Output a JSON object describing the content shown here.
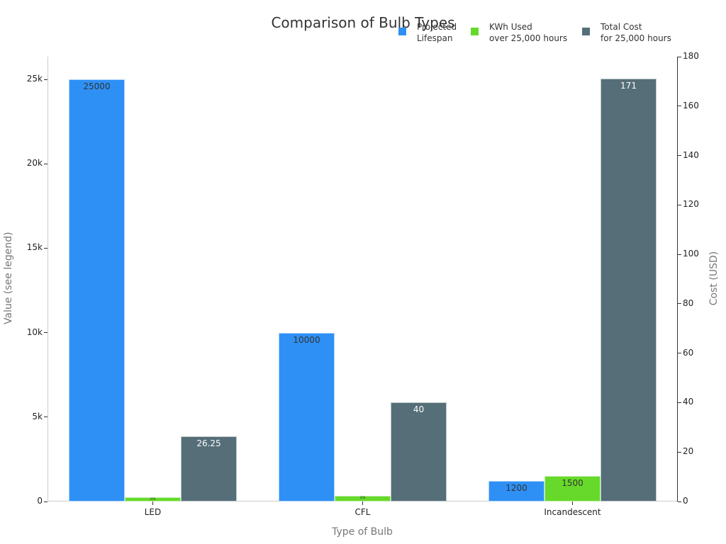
{
  "chart_data": {
    "type": "bar",
    "title": "Comparison of Bulb Types",
    "xlabel": "Type of Bulb",
    "ylabel": "Value (see legend)",
    "y2label": "Cost (USD)",
    "categories": [
      "LED",
      "CFL",
      "Incandescent"
    ],
    "series": [
      {
        "name": "Projected Lifespan",
        "axis": "left",
        "color": "#2e90f5",
        "values": [
          25000,
          10000,
          1200
        ],
        "labels": [
          "25000",
          "10000",
          "1200"
        ]
      },
      {
        "name": "KWh Used over 25,000 hours",
        "axis": "left",
        "color": "#66d92a",
        "values": [
          250,
          350,
          1500
        ],
        "labels": [
          "250",
          "350",
          "1500"
        ]
      },
      {
        "name": "Total Cost for 25,000 hours",
        "axis": "right",
        "color": "#556e78",
        "values": [
          26.25,
          40,
          171
        ],
        "labels": [
          "26.25",
          "40",
          "171"
        ]
      }
    ],
    "ylim": [
      0,
      26200
    ],
    "y_ticks": [
      "0",
      "5k",
      "10k",
      "15k",
      "20k",
      "25k"
    ],
    "y2lim": [
      0,
      180
    ],
    "y2_ticks": [
      "0",
      "20",
      "40",
      "60",
      "80",
      "100",
      "120",
      "140",
      "160",
      "180"
    ],
    "legend_position": "top-right",
    "grid": false
  },
  "legend": [
    {
      "line1": "Projected",
      "line2": "Lifespan",
      "color": "#2e90f5"
    },
    {
      "line1": "KWh Used",
      "line2": "over 25,000 hours",
      "color": "#66d92a"
    },
    {
      "line1": "Total Cost",
      "line2": "for 25,000 hours",
      "color": "#556e78"
    }
  ]
}
